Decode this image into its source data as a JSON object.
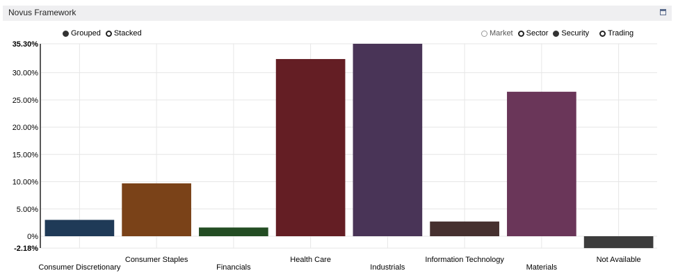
{
  "panel": {
    "title": "Novus Framework"
  },
  "mode_toggle": [
    {
      "label": "Grouped",
      "selected": true
    },
    {
      "label": "Stacked",
      "selected": false
    }
  ],
  "view_toggle": [
    {
      "label": "Market",
      "selected": false,
      "disabled": true
    },
    {
      "label": "Sector",
      "selected": false
    },
    {
      "label": "Security",
      "selected": true
    },
    {
      "label": "Trading",
      "selected": false
    }
  ],
  "chart_data": {
    "type": "bar",
    "categories": [
      "Consumer Discretionary",
      "Consumer Staples",
      "Financials",
      "Health Care",
      "Industrials",
      "Information Technology",
      "Materials",
      "Not Available"
    ],
    "values": [
      3.0,
      9.7,
      1.6,
      32.5,
      35.3,
      2.7,
      26.5,
      -2.18
    ],
    "colors": [
      "#1f3a57",
      "#7a4218",
      "#234d23",
      "#641e24",
      "#493457",
      "#46302f",
      "#6a3659",
      "#3c3c3c"
    ],
    "ylim": [
      -2.18,
      35.3
    ],
    "yticks": [
      "35.30%",
      "30.00%",
      "25.00%",
      "20.00%",
      "15.00%",
      "10.00%",
      "5.00%",
      "0%",
      "-2.18%"
    ],
    "grid": true,
    "xlabel": "",
    "ylabel": "",
    "title": ""
  }
}
